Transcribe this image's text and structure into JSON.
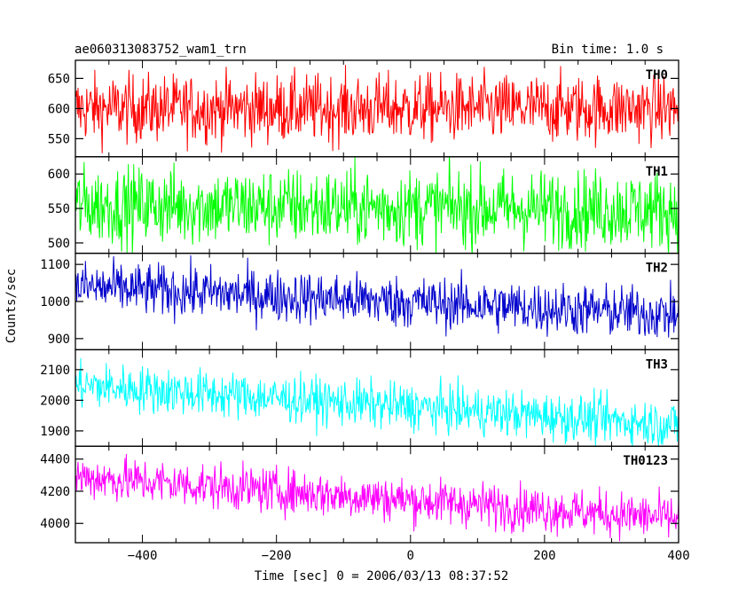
{
  "header": {
    "title": "ae060313083752_wam1_trn",
    "bin_time": "Bin time: 1.0 s"
  },
  "chart_data": {
    "type": "line",
    "title": "ae060313083752_wam1_trn",
    "subtitle": "Bin time: 1.0 s",
    "xlabel": "Time [sec] 0 = 2006/03/13 08:37:52",
    "ylabel": "Counts/sec",
    "xlim": [
      -500,
      400
    ],
    "x_ticks": [
      -400,
      -200,
      0,
      200,
      400
    ],
    "x_tick_labels": [
      "−400",
      "−200",
      "0",
      "200",
      "400"
    ],
    "grid": false,
    "bin_time_s": 1.0,
    "series": [
      {
        "name": "TH0",
        "color": "#ff0000",
        "ylim": [
          520,
          680
        ],
        "y_ticks": [
          550,
          600,
          650
        ],
        "x": [
          -500,
          400
        ],
        "mean_values": [
          600,
          600
        ],
        "noise_sd": 28
      },
      {
        "name": "TH1",
        "color": "#00ff00",
        "ylim": [
          485,
          625
        ],
        "y_ticks": [
          500,
          550,
          600
        ],
        "x": [
          -500,
          400
        ],
        "mean_values": [
          555,
          548
        ],
        "noise_sd": 28
      },
      {
        "name": "TH2",
        "color": "#0000cc",
        "ylim": [
          870,
          1130
        ],
        "y_ticks": [
          900,
          1000,
          1100
        ],
        "x": [
          -500,
          400
        ],
        "mean_values": [
          1040,
          965
        ],
        "noise_sd": 35
      },
      {
        "name": "TH3",
        "color": "#00ffff",
        "ylim": [
          1850,
          2165
        ],
        "y_ticks": [
          1900,
          2000,
          2100
        ],
        "x": [
          -500,
          400
        ],
        "mean_values": [
          2050,
          1920
        ],
        "noise_sd": 38
      },
      {
        "name": "TH0123",
        "color": "#ff00ff",
        "ylim": [
          3880,
          4480
        ],
        "y_ticks": [
          4000,
          4200,
          4400
        ],
        "x": [
          -500,
          400
        ],
        "mean_values": [
          4290,
          4030
        ],
        "noise_sd": 70
      }
    ]
  }
}
